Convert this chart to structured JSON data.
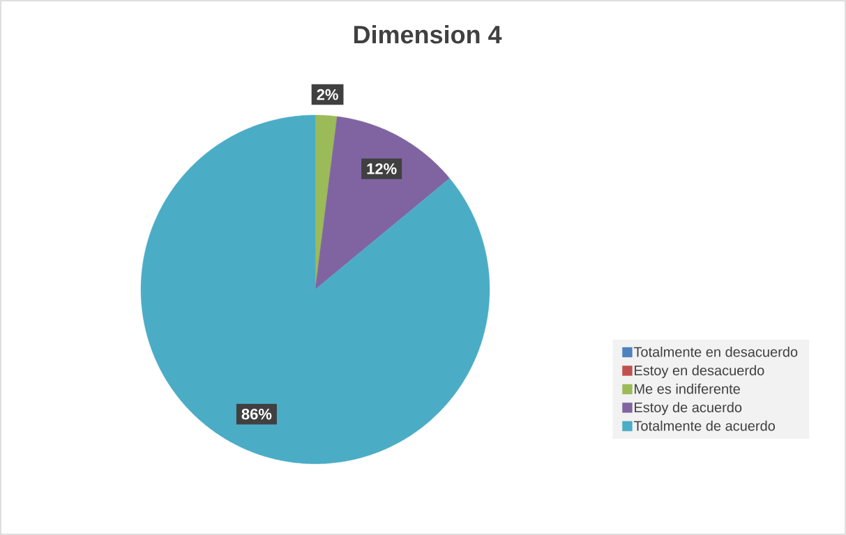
{
  "chart_data": {
    "type": "pie",
    "title": "Dimension 4",
    "categories": [
      "Totalmente en desacuerdo",
      "Estoy en desacuerdo",
      "Me es indiferente",
      "Estoy de acuerdo",
      "Totalmente de acuerdo"
    ],
    "values": [
      0,
      0,
      2,
      12,
      86
    ],
    "colors": [
      "#4f81bd",
      "#c0504d",
      "#9bbb59",
      "#8064a2",
      "#4bacc6"
    ],
    "value_labels": [
      null,
      null,
      "2%",
      "12%",
      "86%"
    ],
    "legend": "right"
  }
}
